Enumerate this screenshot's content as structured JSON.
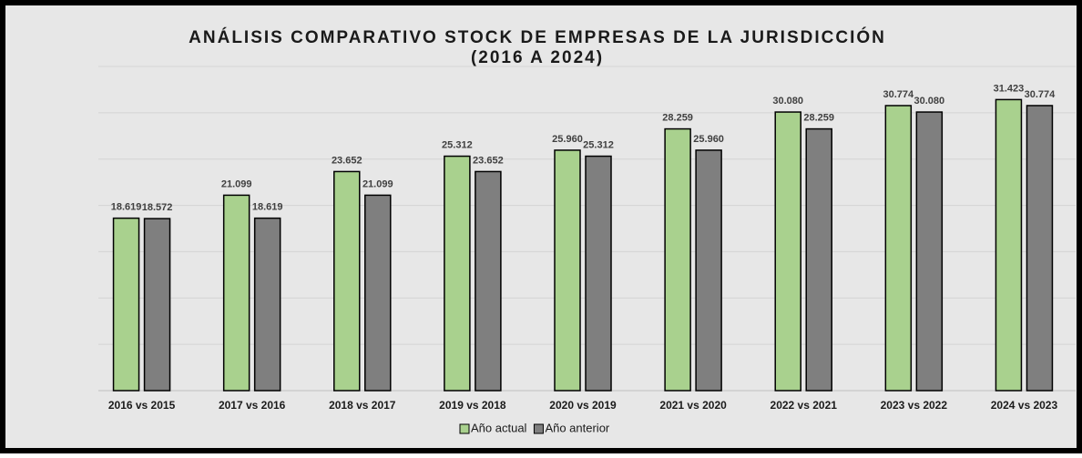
{
  "chart_data": {
    "type": "bar",
    "title": "ANÁLISIS COMPARATIVO STOCK DE EMPRESAS DE LA JURISDICCIÓN",
    "subtitle": "(2016 A 2024)",
    "categories": [
      "2016 vs 2015",
      "2017 vs 2016",
      "2018 vs 2017",
      "2019 vs 2018",
      "2020 vs 2019",
      "2021 vs 2020",
      "2022 vs 2021",
      "2023 vs 2022",
      "2024 vs 2023"
    ],
    "series": [
      {
        "name": "Año actual",
        "color": "#a9d18e",
        "values": [
          18619,
          21099,
          23652,
          25312,
          25960,
          28259,
          30080,
          30774,
          31423
        ],
        "value_labels": [
          "18.619",
          "21.099",
          "23.652",
          "25.312",
          "25.960",
          "28.259",
          "30.080",
          "30.774",
          "31.423"
        ]
      },
      {
        "name": "Año anterior",
        "color": "#7f7f7f",
        "values": [
          18572,
          18619,
          21099,
          23652,
          25312,
          25960,
          28259,
          30080,
          30774
        ],
        "value_labels": [
          "18.572",
          "18.619",
          "21.099",
          "23.652",
          "25.312",
          "25.960",
          "28.259",
          "30.080",
          "30.774"
        ]
      }
    ],
    "ylim": [
      0,
      35000
    ],
    "yticks": [
      0,
      5000,
      10000,
      15000,
      20000,
      25000,
      30000,
      35000
    ],
    "grid": true,
    "legend": "bottom"
  }
}
